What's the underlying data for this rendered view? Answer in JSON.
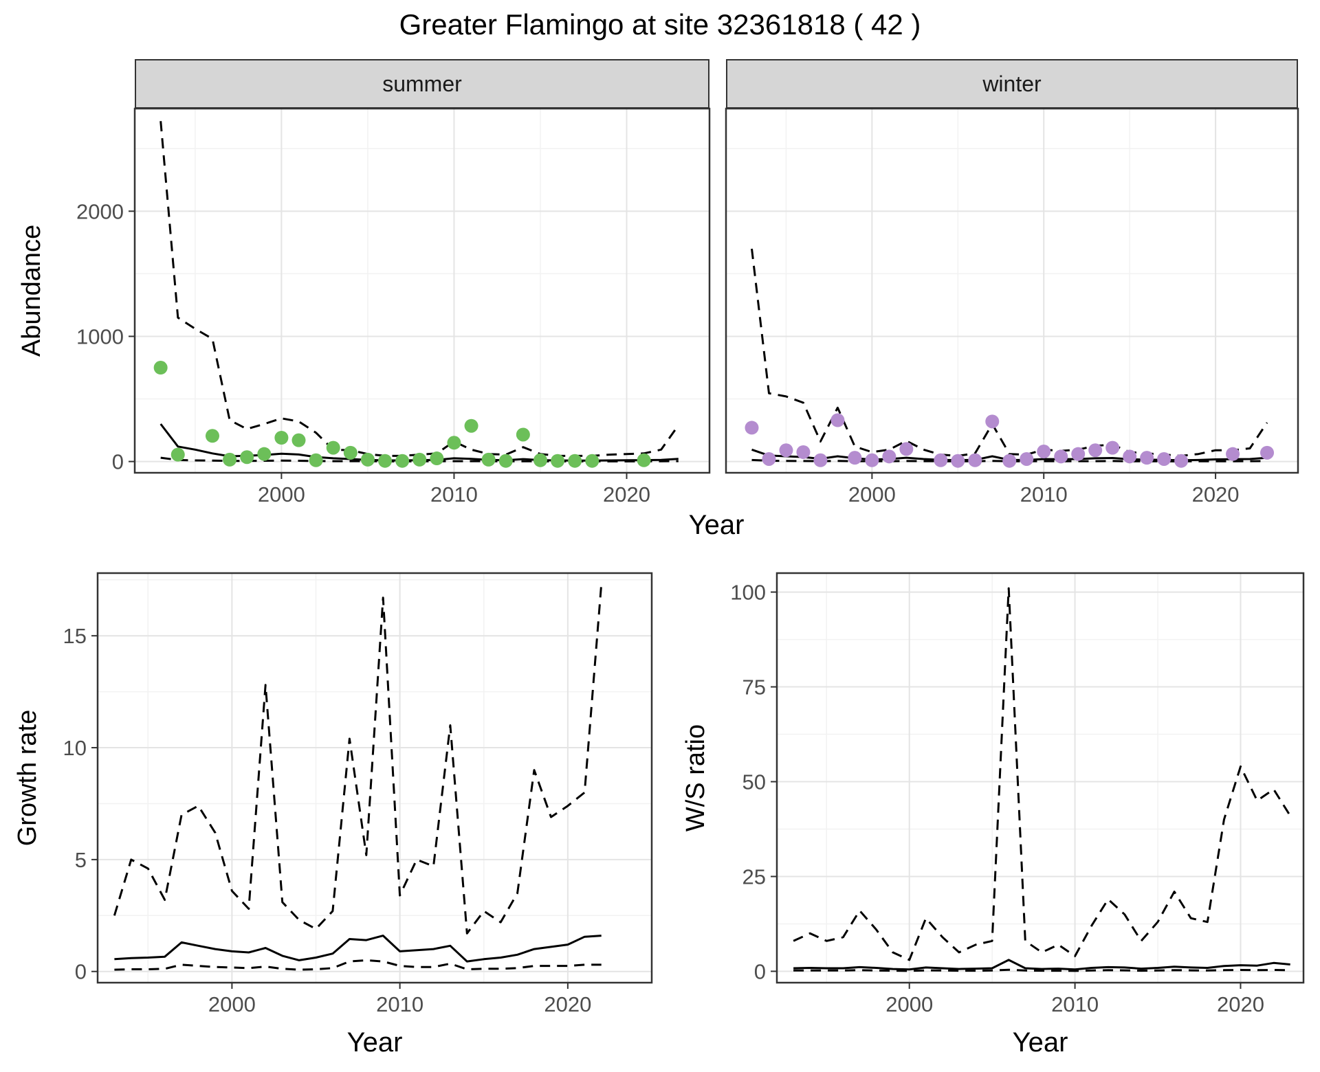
{
  "title": "Greater Flamingo at site 32361818 ( 42 )",
  "facets": {
    "summer": "summer",
    "winter": "winter"
  },
  "shared_axis": {
    "x": "Year",
    "y": "Abundance"
  },
  "colors": {
    "summer_point": "#6CBF59",
    "winter_point": "#B48CCF",
    "line": "#000000",
    "strip_bg": "#D6D6D6",
    "panel_border": "#333333",
    "grid_major": "#E4E4E4",
    "grid_minor": "#F2F2F2",
    "tick_text": "#4D4D4D"
  },
  "chart_data": [
    {
      "type": "line",
      "facet": "summer",
      "xlabel": "Year",
      "ylabel": "Abundance",
      "xlim": [
        1991.5,
        2024.8
      ],
      "ylim": [
        -90,
        2820
      ],
      "xticks": [
        2000,
        2010,
        2020
      ],
      "xminor": [
        1995,
        2005,
        2015
      ],
      "yticks": [
        0,
        1000,
        2000
      ],
      "yminor": [
        500,
        1500,
        2500
      ],
      "series": [
        {
          "name": "upper-ci",
          "style": "dashed",
          "x": [
            1993,
            1994,
            1995,
            1996,
            1997,
            1998,
            1999,
            2000,
            2001,
            2002,
            2003,
            2004,
            2005,
            2006,
            2007,
            2008,
            2009,
            2010,
            2011,
            2012,
            2013,
            2014,
            2015,
            2016,
            2017,
            2018,
            2019,
            2020,
            2021,
            2022,
            2023
          ],
          "y": [
            2720,
            1150,
            1060,
            980,
            330,
            260,
            300,
            345,
            320,
            230,
            95,
            90,
            60,
            45,
            45,
            55,
            65,
            160,
            95,
            60,
            55,
            115,
            60,
            45,
            45,
            45,
            55,
            60,
            65,
            95,
            290
          ]
        },
        {
          "name": "fit",
          "style": "solid",
          "x": [
            1993,
            1994,
            1995,
            1996,
            1997,
            1998,
            1999,
            2000,
            2001,
            2002,
            2003,
            2004,
            2005,
            2006,
            2007,
            2008,
            2009,
            2010,
            2011,
            2012,
            2013,
            2014,
            2015,
            2016,
            2017,
            2018,
            2019,
            2020,
            2021,
            2022,
            2023
          ],
          "y": [
            300,
            120,
            95,
            65,
            42,
            46,
            52,
            62,
            56,
            36,
            26,
            20,
            13,
            9,
            9,
            11,
            13,
            26,
            21,
            13,
            10,
            19,
            11,
            9,
            8,
            8,
            9,
            10,
            11,
            13,
            21
          ]
        },
        {
          "name": "lower-ci",
          "style": "dashed",
          "x": [
            1993,
            1994,
            1995,
            1996,
            1997,
            1998,
            1999,
            2000,
            2001,
            2002,
            2003,
            2004,
            2005,
            2006,
            2007,
            2008,
            2009,
            2010,
            2011,
            2012,
            2013,
            2014,
            2015,
            2016,
            2017,
            2018,
            2019,
            2020,
            2021,
            2022,
            2023
          ],
          "y": [
            30,
            12,
            9,
            7,
            5,
            5,
            6,
            7,
            6,
            4,
            3,
            3,
            2,
            1,
            1,
            1,
            2,
            3,
            3,
            2,
            1,
            2,
            1,
            1,
            1,
            1,
            1,
            1,
            1,
            2,
            3
          ]
        },
        {
          "name": "observations",
          "style": "points",
          "color_key": "summer_point",
          "x": [
            1993,
            1994,
            1996,
            1997,
            1998,
            1999,
            2000,
            2001,
            2002,
            2003,
            2004,
            2005,
            2006,
            2007,
            2008,
            2009,
            2010,
            2011,
            2012,
            2013,
            2014,
            2015,
            2016,
            2017,
            2018,
            2021
          ],
          "y": [
            750,
            55,
            205,
            15,
            35,
            60,
            190,
            170,
            10,
            110,
            70,
            15,
            5,
            5,
            15,
            25,
            150,
            285,
            15,
            5,
            215,
            10,
            5,
            5,
            5,
            10
          ]
        }
      ]
    },
    {
      "type": "line",
      "facet": "winter",
      "xlabel": "Year",
      "ylabel": "Abundance",
      "xlim": [
        1991.5,
        2024.8
      ],
      "ylim": [
        -90,
        2820
      ],
      "xticks": [
        2000,
        2010,
        2020
      ],
      "xminor": [
        1995,
        2005,
        2015
      ],
      "yticks": [
        0,
        1000,
        2000
      ],
      "yminor": [
        500,
        1500,
        2500
      ],
      "series": [
        {
          "name": "upper-ci",
          "style": "dashed",
          "x": [
            1993,
            1994,
            1995,
            1996,
            1997,
            1998,
            1999,
            2000,
            2001,
            2002,
            2003,
            2004,
            2005,
            2006,
            2007,
            2008,
            2009,
            2010,
            2011,
            2012,
            2013,
            2014,
            2015,
            2016,
            2017,
            2018,
            2019,
            2020,
            2021,
            2022,
            2023
          ],
          "y": [
            1700,
            545,
            520,
            470,
            160,
            430,
            120,
            75,
            95,
            165,
            95,
            55,
            45,
            65,
            300,
            60,
            55,
            95,
            85,
            95,
            125,
            135,
            75,
            65,
            55,
            45,
            60,
            90,
            90,
            105,
            310
          ]
        },
        {
          "name": "fit",
          "style": "solid",
          "x": [
            1993,
            1994,
            1995,
            1996,
            1997,
            1998,
            1999,
            2000,
            2001,
            2002,
            2003,
            2004,
            2005,
            2006,
            2007,
            2008,
            2009,
            2010,
            2011,
            2012,
            2013,
            2014,
            2015,
            2016,
            2017,
            2018,
            2019,
            2020,
            2021,
            2022,
            2023
          ],
          "y": [
            95,
            48,
            42,
            36,
            22,
            42,
            26,
            16,
            20,
            30,
            20,
            13,
            11,
            13,
            42,
            13,
            12,
            20,
            18,
            20,
            26,
            28,
            18,
            15,
            13,
            10,
            12,
            17,
            18,
            20,
            30
          ]
        },
        {
          "name": "lower-ci",
          "style": "dashed",
          "x": [
            1993,
            1994,
            1995,
            1996,
            1997,
            1998,
            1999,
            2000,
            2001,
            2002,
            2003,
            2004,
            2005,
            2006,
            2007,
            2008,
            2009,
            2010,
            2011,
            2012,
            2013,
            2014,
            2015,
            2016,
            2017,
            2018,
            2019,
            2020,
            2021,
            2022,
            2023
          ],
          "y": [
            12,
            6,
            5,
            4,
            3,
            5,
            3,
            2,
            3,
            4,
            3,
            2,
            2,
            2,
            5,
            2,
            2,
            3,
            2,
            3,
            3,
            4,
            2,
            2,
            2,
            1,
            2,
            2,
            2,
            3,
            4
          ]
        },
        {
          "name": "observations",
          "style": "points",
          "color_key": "winter_point",
          "x": [
            1993,
            1994,
            1995,
            1996,
            1997,
            1998,
            1999,
            2000,
            2001,
            2002,
            2004,
            2005,
            2006,
            2007,
            2008,
            2009,
            2010,
            2011,
            2012,
            2013,
            2014,
            2015,
            2016,
            2017,
            2018,
            2021,
            2023
          ],
          "y": [
            270,
            20,
            90,
            75,
            10,
            330,
            30,
            10,
            40,
            100,
            10,
            5,
            10,
            320,
            5,
            20,
            80,
            40,
            60,
            90,
            110,
            40,
            30,
            20,
            5,
            60,
            70
          ]
        }
      ]
    },
    {
      "type": "line",
      "facet": null,
      "xlabel": "Year",
      "ylabel": "Growth rate",
      "xlim": [
        1992,
        2025
      ],
      "ylim": [
        -0.5,
        17.8
      ],
      "xticks": [
        2000,
        2010,
        2020
      ],
      "xminor": [
        1995,
        2005,
        2015
      ],
      "yticks": [
        0,
        5,
        10,
        15
      ],
      "yminor": [
        2.5,
        7.5,
        12.5,
        17.5
      ],
      "series": [
        {
          "name": "upper-ci",
          "style": "dashed",
          "x": [
            1993,
            1994,
            1995,
            1996,
            1997,
            1998,
            1999,
            2000,
            2001,
            2002,
            2003,
            2004,
            2005,
            2006,
            2007,
            2008,
            2009,
            2010,
            2011,
            2012,
            2013,
            2014,
            2015,
            2016,
            2017,
            2018,
            2019,
            2020,
            2021,
            2022
          ],
          "y": [
            2.5,
            5.0,
            4.6,
            3.2,
            7.0,
            7.4,
            6.2,
            3.6,
            2.8,
            12.8,
            3.1,
            2.3,
            1.9,
            2.7,
            10.4,
            5.2,
            16.7,
            3.4,
            5.0,
            4.7,
            11.0,
            1.7,
            2.7,
            2.2,
            3.5,
            9.0,
            6.9,
            7.4,
            8.0,
            17.3
          ]
        },
        {
          "name": "fit",
          "style": "solid",
          "x": [
            1993,
            1994,
            1995,
            1996,
            1997,
            1998,
            1999,
            2000,
            2001,
            2002,
            2003,
            2004,
            2005,
            2006,
            2007,
            2008,
            2009,
            2010,
            2011,
            2012,
            2013,
            2014,
            2015,
            2016,
            2017,
            2018,
            2019,
            2020,
            2021,
            2022
          ],
          "y": [
            0.55,
            0.6,
            0.62,
            0.66,
            1.3,
            1.15,
            1.0,
            0.9,
            0.85,
            1.05,
            0.7,
            0.5,
            0.62,
            0.8,
            1.45,
            1.4,
            1.6,
            0.9,
            0.95,
            1.0,
            1.15,
            0.45,
            0.55,
            0.62,
            0.75,
            1.0,
            1.1,
            1.2,
            1.55,
            1.6
          ]
        },
        {
          "name": "lower-ci",
          "style": "dashed",
          "x": [
            1993,
            1994,
            1995,
            1996,
            1997,
            1998,
            1999,
            2000,
            2001,
            2002,
            2003,
            2004,
            2005,
            2006,
            2007,
            2008,
            2009,
            2010,
            2011,
            2012,
            2013,
            2014,
            2015,
            2016,
            2017,
            2018,
            2019,
            2020,
            2021,
            2022
          ],
          "y": [
            0.08,
            0.1,
            0.1,
            0.12,
            0.3,
            0.25,
            0.2,
            0.18,
            0.15,
            0.22,
            0.12,
            0.08,
            0.1,
            0.15,
            0.45,
            0.5,
            0.45,
            0.25,
            0.2,
            0.2,
            0.35,
            0.1,
            0.12,
            0.12,
            0.15,
            0.25,
            0.25,
            0.25,
            0.3,
            0.3
          ]
        }
      ]
    },
    {
      "type": "line",
      "facet": null,
      "xlabel": "Year",
      "ylabel": "W/S ratio",
      "xlim": [
        1992,
        2023.8
      ],
      "ylim": [
        -3,
        105
      ],
      "xticks": [
        2000,
        2010,
        2020
      ],
      "xminor": [
        1995,
        2005,
        2015
      ],
      "yticks": [
        0,
        25,
        50,
        75,
        100
      ],
      "yminor": [
        12.5,
        37.5,
        62.5,
        87.5
      ],
      "series": [
        {
          "name": "upper-ci",
          "style": "dashed",
          "x": [
            1993,
            1994,
            1995,
            1996,
            1997,
            1998,
            1999,
            2000,
            2001,
            2002,
            2003,
            2004,
            2005,
            2006,
            2007,
            2008,
            2009,
            2010,
            2011,
            2012,
            2013,
            2014,
            2015,
            2016,
            2017,
            2018,
            2019,
            2020,
            2021,
            2022,
            2023
          ],
          "y": [
            8,
            10,
            8,
            9,
            16,
            11,
            5,
            3,
            14,
            9,
            5,
            7,
            8,
            101,
            8,
            5,
            7,
            4,
            12,
            19,
            15,
            8,
            13,
            21,
            14,
            13,
            40,
            54,
            45,
            48,
            41
          ]
        },
        {
          "name": "fit",
          "style": "solid",
          "x": [
            1993,
            1994,
            1995,
            1996,
            1997,
            1998,
            1999,
            2000,
            2001,
            2002,
            2003,
            2004,
            2005,
            2006,
            2007,
            2008,
            2009,
            2010,
            2011,
            2012,
            2013,
            2014,
            2015,
            2016,
            2017,
            2018,
            2019,
            2020,
            2021,
            2022,
            2023
          ],
          "y": [
            0.8,
            0.9,
            0.8,
            0.8,
            1.1,
            0.9,
            0.6,
            0.5,
            1.0,
            0.8,
            0.6,
            0.7,
            0.8,
            3.0,
            0.8,
            0.6,
            0.7,
            0.5,
            0.9,
            1.1,
            1.0,
            0.7,
            0.9,
            1.2,
            1.0,
            0.9,
            1.4,
            1.6,
            1.5,
            2.2,
            1.8
          ]
        },
        {
          "name": "lower-ci",
          "style": "dashed",
          "x": [
            1993,
            1994,
            1995,
            1996,
            1997,
            1998,
            1999,
            2000,
            2001,
            2002,
            2003,
            2004,
            2005,
            2006,
            2007,
            2008,
            2009,
            2010,
            2011,
            2012,
            2013,
            2014,
            2015,
            2016,
            2017,
            2018,
            2019,
            2020,
            2021,
            2022,
            2023
          ],
          "y": [
            0.2,
            0.2,
            0.2,
            0.2,
            0.3,
            0.2,
            0.15,
            0.1,
            0.25,
            0.2,
            0.15,
            0.15,
            0.2,
            0.4,
            0.2,
            0.15,
            0.15,
            0.1,
            0.2,
            0.3,
            0.25,
            0.15,
            0.2,
            0.3,
            0.25,
            0.2,
            0.3,
            0.35,
            0.3,
            0.35,
            0.3
          ]
        }
      ]
    }
  ]
}
